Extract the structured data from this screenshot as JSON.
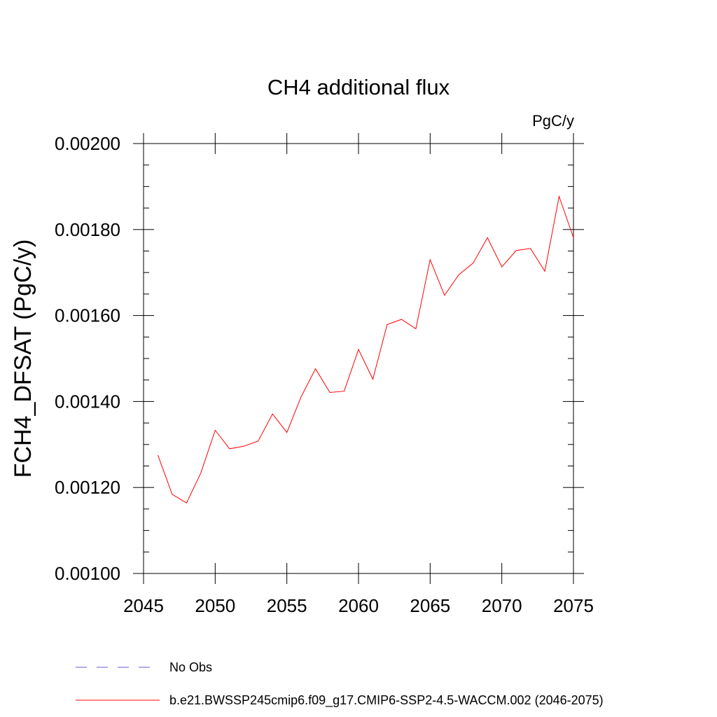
{
  "chart_data": {
    "type": "line",
    "title": "CH4 additional flux",
    "units": "PgC/y",
    "xlabel": "",
    "ylabel": "FCH4_DFSAT  (PgC/y)",
    "xlim": [
      2045,
      2075
    ],
    "ylim": [
      0.001,
      0.002
    ],
    "x_ticks": [
      2045,
      2050,
      2055,
      2060,
      2065,
      2070,
      2075
    ],
    "x_tick_labels": [
      "2045",
      "2050",
      "2055",
      "2060",
      "2065",
      "2070",
      "2075"
    ],
    "y_ticks": [
      0.001,
      0.0012,
      0.0014,
      0.0016,
      0.0018,
      0.002
    ],
    "y_tick_labels": [
      "0.00100",
      "0.00120",
      "0.00140",
      "0.00160",
      "0.00180",
      "0.00200"
    ],
    "grid": false,
    "legend_position": "bottom",
    "series": [
      {
        "name": "b.e21.BWSSP245cmip6.f09_g17.CMIP6-SSP2-4.5-WACCM.002 (2046-2075)",
        "color": "#ff0000",
        "style": "solid",
        "x": [
          2046,
          2047,
          2048,
          2049,
          2050,
          2051,
          2052,
          2053,
          2054,
          2055,
          2056,
          2057,
          2058,
          2059,
          2060,
          2061,
          2062,
          2063,
          2064,
          2065,
          2066,
          2067,
          2068,
          2069,
          2070,
          2071,
          2072,
          2073,
          2074,
          2075
        ],
        "values": [
          0.001275,
          0.001184,
          0.001164,
          0.001234,
          0.001333,
          0.00129,
          0.001296,
          0.001308,
          0.001371,
          0.001328,
          0.001411,
          0.001476,
          0.001421,
          0.001424,
          0.001521,
          0.001452,
          0.001579,
          0.001591,
          0.001569,
          0.00173,
          0.001647,
          0.001695,
          0.001722,
          0.001781,
          0.001713,
          0.001751,
          0.001756,
          0.001703,
          0.001877,
          0.001781
        ]
      }
    ],
    "legend": [
      {
        "label": "No Obs",
        "color": "#6a5acd",
        "style": "dashed"
      },
      {
        "label": "b.e21.BWSSP245cmip6.f09_g17.CMIP6-SSP2-4.5-WACCM.002 (2046-2075)",
        "color": "#ff0000",
        "style": "solid"
      }
    ]
  }
}
